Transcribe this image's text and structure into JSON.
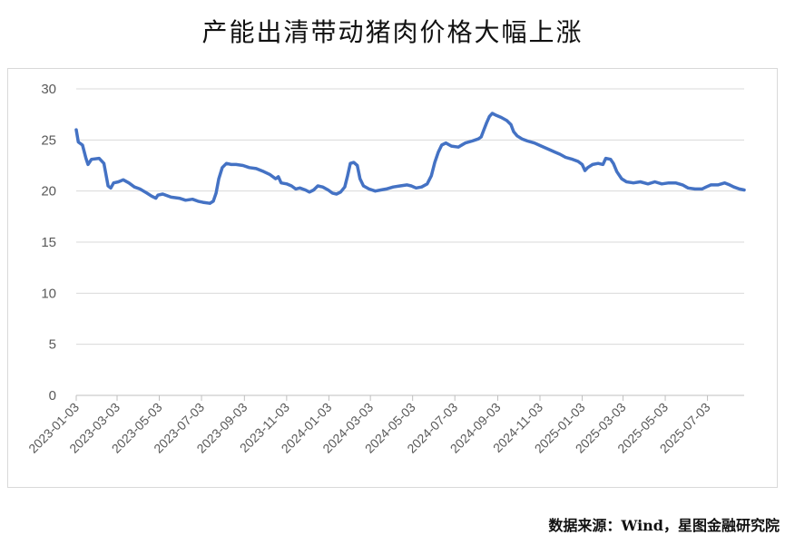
{
  "chart_data": {
    "type": "line",
    "title": "产能出清带动猪肉价格大幅上涨",
    "xlabel": "",
    "ylabel": "",
    "ylim": [
      0,
      30
    ],
    "yticks": [
      0,
      5,
      10,
      15,
      20,
      25,
      30
    ],
    "xlim": [
      "2023-01-03",
      "2025-08-25"
    ],
    "xticks": [
      "2023-01-03",
      "2023-03-03",
      "2023-05-03",
      "2023-07-03",
      "2023-09-03",
      "2023-11-03",
      "2024-01-03",
      "2024-03-03",
      "2024-05-03",
      "2024-07-03",
      "2024-09-03",
      "2024-11-03",
      "2025-01-03",
      "2025-03-03",
      "2025-05-03",
      "2025-07-03"
    ],
    "grid": true,
    "legend": "none",
    "series": [
      {
        "color": "#4472c4",
        "points": [
          [
            "2023-01-03",
            26.0
          ],
          [
            "2023-01-06",
            24.8
          ],
          [
            "2023-01-12",
            24.5
          ],
          [
            "2023-01-17",
            23.2
          ],
          [
            "2023-01-20",
            22.6
          ],
          [
            "2023-01-25",
            23.1
          ],
          [
            "2023-02-05",
            23.2
          ],
          [
            "2023-02-12",
            22.7
          ],
          [
            "2023-02-15",
            21.6
          ],
          [
            "2023-02-18",
            20.5
          ],
          [
            "2023-02-22",
            20.3
          ],
          [
            "2023-02-26",
            20.8
          ],
          [
            "2023-03-05",
            20.9
          ],
          [
            "2023-03-12",
            21.1
          ],
          [
            "2023-03-20",
            20.8
          ],
          [
            "2023-03-28",
            20.4
          ],
          [
            "2023-04-05",
            20.2
          ],
          [
            "2023-04-15",
            19.8
          ],
          [
            "2023-04-22",
            19.5
          ],
          [
            "2023-04-28",
            19.3
          ],
          [
            "2023-05-01",
            19.6
          ],
          [
            "2023-05-08",
            19.7
          ],
          [
            "2023-05-20",
            19.4
          ],
          [
            "2023-06-01",
            19.3
          ],
          [
            "2023-06-10",
            19.1
          ],
          [
            "2023-06-20",
            19.2
          ],
          [
            "2023-06-28",
            19.0
          ],
          [
            "2023-07-05",
            18.9
          ],
          [
            "2023-07-15",
            18.8
          ],
          [
            "2023-07-20",
            19.0
          ],
          [
            "2023-07-24",
            19.8
          ],
          [
            "2023-07-28",
            21.2
          ],
          [
            "2023-08-02",
            22.3
          ],
          [
            "2023-08-08",
            22.7
          ],
          [
            "2023-08-15",
            22.6
          ],
          [
            "2023-08-22",
            22.6
          ],
          [
            "2023-09-01",
            22.5
          ],
          [
            "2023-09-10",
            22.3
          ],
          [
            "2023-09-20",
            22.2
          ],
          [
            "2023-10-01",
            21.9
          ],
          [
            "2023-10-10",
            21.6
          ],
          [
            "2023-10-18",
            21.2
          ],
          [
            "2023-10-22",
            21.4
          ],
          [
            "2023-10-26",
            20.8
          ],
          [
            "2023-11-03",
            20.7
          ],
          [
            "2023-11-10",
            20.5
          ],
          [
            "2023-11-16",
            20.2
          ],
          [
            "2023-11-22",
            20.3
          ],
          [
            "2023-11-30",
            20.1
          ],
          [
            "2023-12-06",
            19.9
          ],
          [
            "2023-12-12",
            20.1
          ],
          [
            "2023-12-18",
            20.5
          ],
          [
            "2023-12-25",
            20.4
          ],
          [
            "2024-01-02",
            20.1
          ],
          [
            "2024-01-08",
            19.8
          ],
          [
            "2024-01-14",
            19.7
          ],
          [
            "2024-01-20",
            19.9
          ],
          [
            "2024-01-26",
            20.4
          ],
          [
            "2024-01-30",
            21.5
          ],
          [
            "2024-02-03",
            22.7
          ],
          [
            "2024-02-08",
            22.8
          ],
          [
            "2024-02-13",
            22.5
          ],
          [
            "2024-02-17",
            21.2
          ],
          [
            "2024-02-22",
            20.5
          ],
          [
            "2024-03-01",
            20.2
          ],
          [
            "2024-03-10",
            20.0
          ],
          [
            "2024-03-18",
            20.1
          ],
          [
            "2024-03-26",
            20.2
          ],
          [
            "2024-04-05",
            20.4
          ],
          [
            "2024-04-15",
            20.5
          ],
          [
            "2024-04-25",
            20.6
          ],
          [
            "2024-05-01",
            20.5
          ],
          [
            "2024-05-08",
            20.3
          ],
          [
            "2024-05-16",
            20.4
          ],
          [
            "2024-05-24",
            20.7
          ],
          [
            "2024-05-30",
            21.5
          ],
          [
            "2024-06-04",
            22.8
          ],
          [
            "2024-06-09",
            23.8
          ],
          [
            "2024-06-14",
            24.5
          ],
          [
            "2024-06-20",
            24.7
          ],
          [
            "2024-06-28",
            24.4
          ],
          [
            "2024-07-08",
            24.3
          ],
          [
            "2024-07-18",
            24.7
          ],
          [
            "2024-07-28",
            24.9
          ],
          [
            "2024-08-06",
            25.1
          ],
          [
            "2024-08-10",
            25.3
          ],
          [
            "2024-08-14",
            26.0
          ],
          [
            "2024-08-18",
            26.7
          ],
          [
            "2024-08-22",
            27.3
          ],
          [
            "2024-08-26",
            27.6
          ],
          [
            "2024-09-01",
            27.4
          ],
          [
            "2024-09-08",
            27.2
          ],
          [
            "2024-09-16",
            26.9
          ],
          [
            "2024-09-22",
            26.5
          ],
          [
            "2024-09-26",
            25.8
          ],
          [
            "2024-10-01",
            25.4
          ],
          [
            "2024-10-08",
            25.1
          ],
          [
            "2024-10-16",
            24.9
          ],
          [
            "2024-10-26",
            24.7
          ],
          [
            "2024-11-05",
            24.4
          ],
          [
            "2024-11-15",
            24.1
          ],
          [
            "2024-11-25",
            23.8
          ],
          [
            "2024-12-02",
            23.6
          ],
          [
            "2024-12-10",
            23.3
          ],
          [
            "2024-12-20",
            23.1
          ],
          [
            "2024-12-28",
            22.9
          ],
          [
            "2025-01-03",
            22.6
          ],
          [
            "2025-01-07",
            22.0
          ],
          [
            "2025-01-11",
            22.3
          ],
          [
            "2025-01-18",
            22.6
          ],
          [
            "2025-01-26",
            22.7
          ],
          [
            "2025-02-02",
            22.6
          ],
          [
            "2025-02-06",
            23.2
          ],
          [
            "2025-02-13",
            23.1
          ],
          [
            "2025-02-17",
            22.7
          ],
          [
            "2025-02-22",
            21.9
          ],
          [
            "2025-03-01",
            21.2
          ],
          [
            "2025-03-08",
            20.9
          ],
          [
            "2025-03-18",
            20.8
          ],
          [
            "2025-03-28",
            20.9
          ],
          [
            "2025-04-08",
            20.7
          ],
          [
            "2025-04-18",
            20.9
          ],
          [
            "2025-04-28",
            20.7
          ],
          [
            "2025-05-08",
            20.8
          ],
          [
            "2025-05-18",
            20.8
          ],
          [
            "2025-05-28",
            20.6
          ],
          [
            "2025-06-05",
            20.3
          ],
          [
            "2025-06-15",
            20.2
          ],
          [
            "2025-06-25",
            20.2
          ],
          [
            "2025-07-01",
            20.4
          ],
          [
            "2025-07-08",
            20.6
          ],
          [
            "2025-07-18",
            20.6
          ],
          [
            "2025-07-28",
            20.8
          ],
          [
            "2025-08-04",
            20.6
          ],
          [
            "2025-08-10",
            20.4
          ],
          [
            "2025-08-18",
            20.2
          ],
          [
            "2025-08-25",
            20.1
          ]
        ]
      }
    ]
  },
  "source_note": "数据来源：Wind，星图金融研究院"
}
